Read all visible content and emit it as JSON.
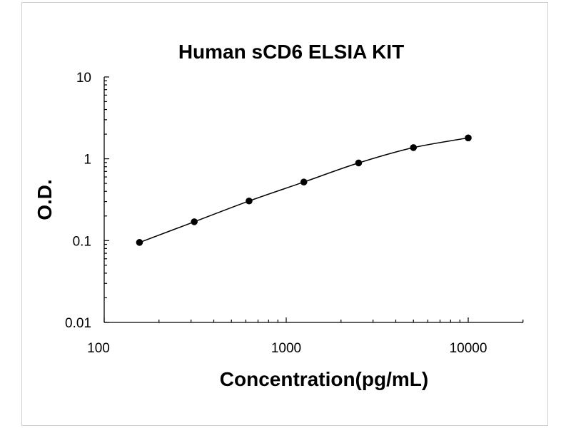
{
  "chart_data": {
    "type": "scatter",
    "title": "Human sCD6 ELSIA KIT",
    "xlabel": "Concentration(pg/mL)",
    "ylabel": "O.D.",
    "x_scale": "log",
    "y_scale": "log",
    "xlim": [
      100,
      20000
    ],
    "ylim": [
      0.01,
      10
    ],
    "x_ticks": [
      "100",
      "1000",
      "10000"
    ],
    "y_ticks": [
      "10",
      "1",
      "0.1",
      "0.01"
    ],
    "grid": false,
    "legend": "none",
    "series": [
      {
        "x": [
          156.25,
          312.5,
          625,
          1250,
          2500,
          5000,
          10000
        ],
        "y": [
          0.095,
          0.17,
          0.305,
          0.52,
          0.89,
          1.37,
          1.8
        ]
      }
    ],
    "colors": {
      "line": "#000000",
      "marker": "#000000"
    }
  }
}
